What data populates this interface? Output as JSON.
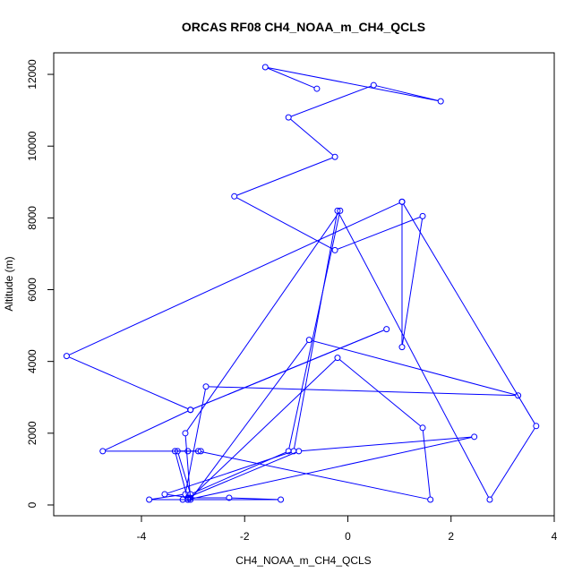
{
  "chart_data": {
    "type": "line",
    "title": "ORCAS RF08 CH4_NOAA_m_CH4_QCLS",
    "xlabel": "CH4_NOAA_m_CH4_QCLS",
    "ylabel": "Altitude (m)",
    "xlim": [
      -5.7,
      4.0
    ],
    "ylim": [
      -300,
      12600
    ],
    "xticks": [
      -4,
      -2,
      0,
      2,
      4
    ],
    "yticks": [
      0,
      2000,
      4000,
      6000,
      8000,
      10000,
      12000
    ],
    "grid": false,
    "legend": "none",
    "color": "#0000ff",
    "series": [
      {
        "x": [
          -0.6,
          -1.6,
          1.8,
          0.5,
          -1.15,
          -0.25,
          -2.2,
          -0.25,
          1.45,
          1.05,
          1.05,
          3.65,
          2.75,
          -0.2,
          -1.05,
          -3.55,
          -3.05,
          -0.2,
          1.45,
          1.6,
          -2.9,
          -3.35,
          -3.1,
          -3.1,
          2.45,
          -0.95,
          -3.2,
          -3.1,
          -2.3,
          -1.3,
          -3.85,
          -3.15,
          -2.75,
          3.3,
          -0.75,
          -3.05,
          -3.15,
          -0.15,
          -1.15,
          -3.05,
          -3.3,
          -3.1,
          -2.85,
          -4.75,
          -3.05,
          0.75,
          -3.05,
          -5.45,
          1.05,
          1.05
        ],
        "y": [
          11600,
          12200,
          11250,
          11700,
          10800,
          9700,
          8600,
          7100,
          8050,
          4400,
          8450,
          2200,
          150,
          8200,
          1500,
          300,
          200,
          4100,
          2150,
          150,
          1500,
          1500,
          150,
          150,
          1900,
          1500,
          150,
          200,
          200,
          150,
          150,
          300,
          3300,
          3050,
          4600,
          150,
          2000,
          8200,
          1500,
          300,
          1500,
          1500,
          1500,
          1500,
          2650,
          4900,
          2650,
          4150,
          8450,
          8450
        ]
      }
    ]
  }
}
